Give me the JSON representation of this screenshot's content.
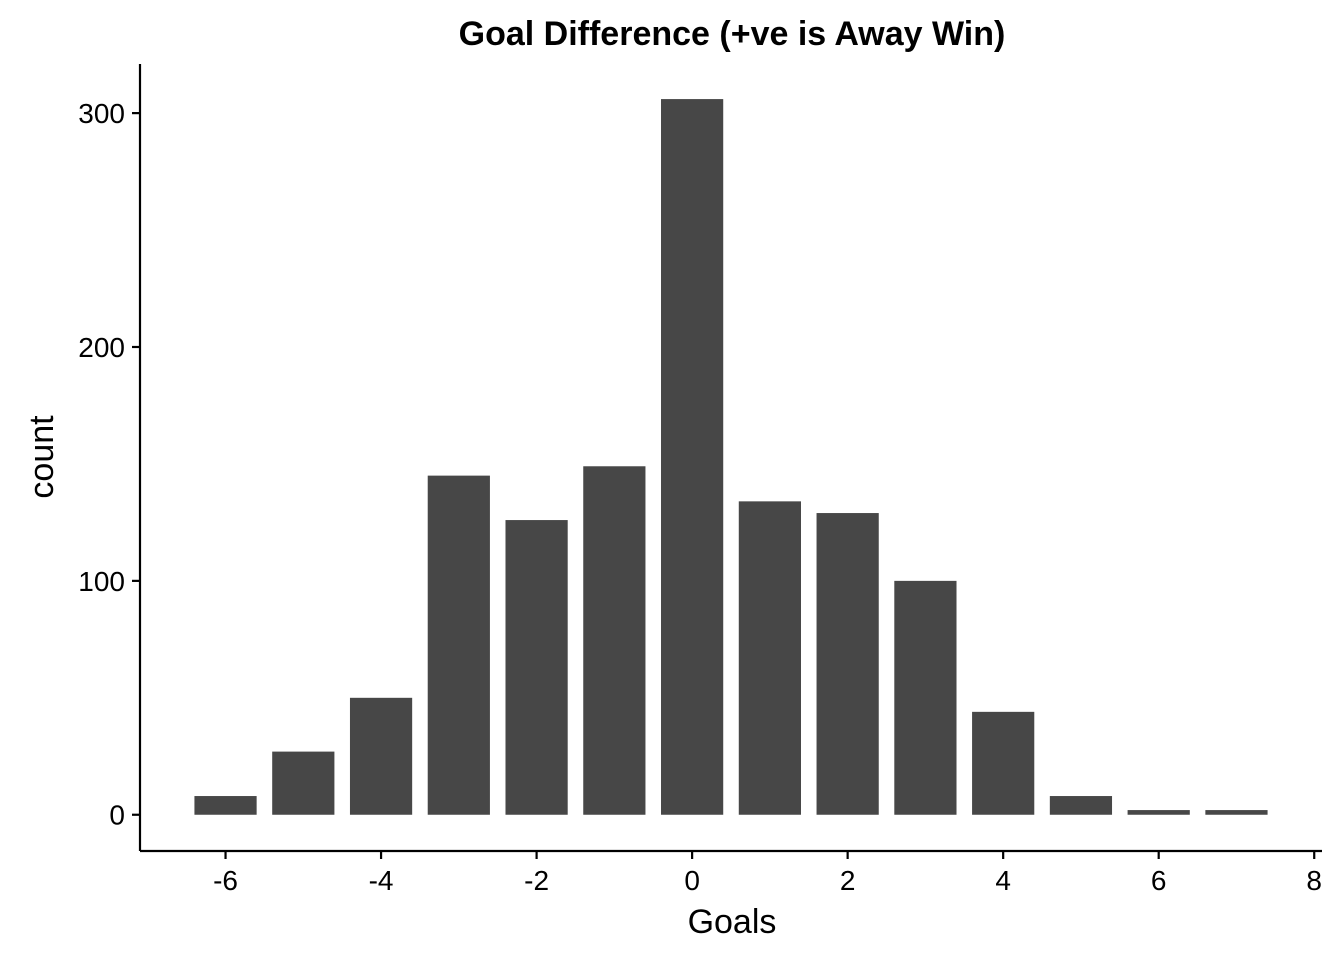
{
  "chart_data": {
    "type": "bar",
    "title": "Goal Difference (+ve is Away Win)",
    "xlabel": "Goals",
    "ylabel": "count",
    "x": [
      -6,
      -5,
      -4,
      -3,
      -2,
      -1,
      0,
      1,
      2,
      3,
      4,
      5,
      6,
      7
    ],
    "values": [
      8,
      27,
      50,
      145,
      126,
      149,
      306,
      134,
      129,
      100,
      44,
      8,
      2,
      2
    ],
    "xlim": [
      -7.1,
      8.1
    ],
    "ylim": [
      -15.5,
      321
    ],
    "x_ticks": [
      -6,
      -4,
      -2,
      0,
      2,
      4,
      6,
      8
    ],
    "x_tick_labels": [
      "-6",
      "-4",
      "-2",
      "0",
      "2",
      "4",
      "6",
      "8"
    ],
    "y_ticks": [
      0,
      100,
      200,
      300
    ],
    "y_tick_labels": [
      "0",
      "100",
      "200",
      "300"
    ],
    "bar_color": "#474747",
    "grid": false,
    "legend": "none"
  }
}
